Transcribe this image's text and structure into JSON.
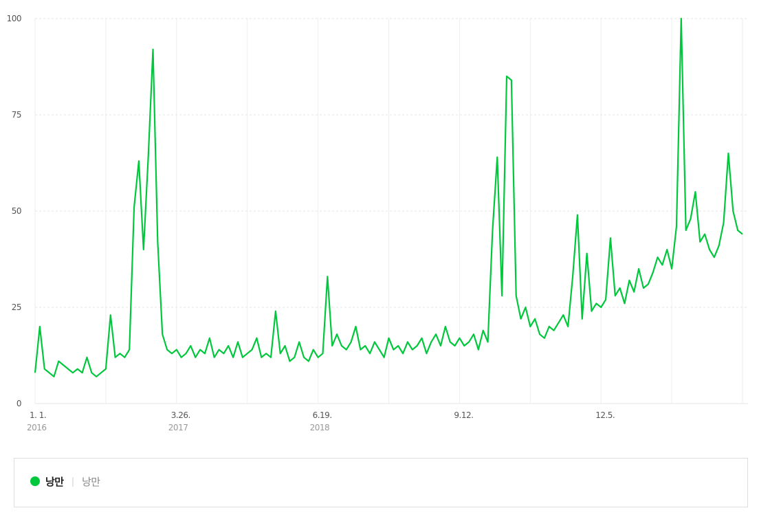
{
  "chart_data": {
    "type": "line",
    "categories": [
      "1. 1.",
      null,
      null,
      null,
      null,
      null,
      null,
      null,
      null,
      null,
      null,
      null,
      null,
      null,
      null,
      null,
      null,
      null,
      null,
      null,
      null,
      null,
      null,
      null,
      null,
      null,
      null,
      null,
      null,
      null,
      "3.26.",
      null,
      null,
      null,
      null,
      null,
      null,
      null,
      null,
      null,
      null,
      null,
      null,
      null,
      null,
      null,
      null,
      null,
      null,
      null,
      null,
      null,
      null,
      null,
      null,
      null,
      null,
      null,
      null,
      null,
      "6.19.",
      null,
      null,
      null,
      null,
      null,
      null,
      null,
      null,
      null,
      null,
      null,
      null,
      null,
      null,
      null,
      null,
      null,
      null,
      null,
      null,
      null,
      null,
      null,
      null,
      null,
      null,
      null,
      null,
      null,
      "9.12.",
      null,
      null,
      null,
      null,
      null,
      null,
      null,
      null,
      null,
      null,
      null,
      null,
      null,
      null,
      null,
      null,
      null,
      null,
      null,
      null,
      null,
      null,
      null,
      null,
      null,
      null,
      null,
      null,
      null,
      "12.5.",
      null,
      null,
      null,
      null,
      null,
      null,
      null,
      null,
      null,
      null,
      null,
      null,
      null,
      null,
      null,
      null,
      null,
      null,
      null,
      null,
      null,
      null,
      null,
      null,
      null,
      null,
      null,
      null,
      null,
      null
    ],
    "year_labels": [
      {
        "index": 0,
        "label": "2016"
      },
      {
        "index": 30,
        "label": "2017"
      },
      {
        "index": 60,
        "label": "2018"
      }
    ],
    "series": [
      {
        "name": "낭만",
        "color": "#00c73c",
        "values": [
          8,
          20,
          9,
          8,
          7,
          11,
          10,
          9,
          8,
          9,
          8,
          12,
          8,
          7,
          8,
          9,
          23,
          12,
          13,
          12,
          14,
          51,
          63,
          40,
          64,
          92,
          42,
          18,
          14,
          13,
          14,
          12,
          13,
          15,
          12,
          14,
          13,
          17,
          12,
          14,
          13,
          15,
          12,
          16,
          12,
          13,
          14,
          17,
          12,
          13,
          12,
          24,
          13,
          15,
          11,
          12,
          16,
          12,
          11,
          14,
          12,
          13,
          33,
          15,
          18,
          15,
          14,
          16,
          20,
          14,
          15,
          13,
          16,
          14,
          12,
          17,
          14,
          15,
          13,
          16,
          14,
          15,
          17,
          13,
          16,
          18,
          15,
          20,
          16,
          15,
          17,
          15,
          16,
          18,
          14,
          19,
          16,
          45,
          64,
          28,
          85,
          84,
          28,
          22,
          25,
          20,
          22,
          18,
          17,
          20,
          19,
          21,
          23,
          20,
          33,
          49,
          22,
          39,
          24,
          26,
          25,
          27,
          43,
          28,
          30,
          26,
          32,
          29,
          35,
          30,
          31,
          34,
          38,
          36,
          40,
          35,
          46,
          100,
          45,
          48,
          55,
          42,
          44,
          40,
          38,
          41,
          47,
          65,
          50,
          45,
          44
        ]
      }
    ],
    "legend_label": "낭만",
    "ylim": [
      0,
      100
    ],
    "yticks": [
      0,
      25,
      50,
      75,
      100
    ],
    "grid": true
  }
}
